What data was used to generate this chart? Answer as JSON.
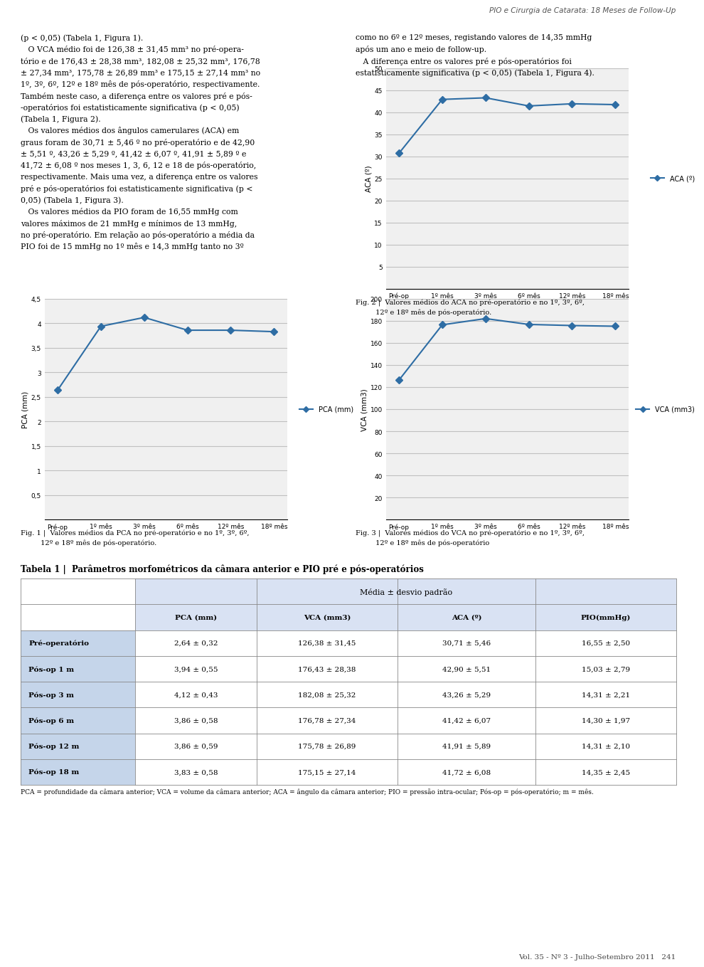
{
  "page_title": "PIO e Cirurgia de Catarata: 18 Meses de Follow-Up",
  "page_number": "Vol. 35 - Nº 3 - Julho-Setembro 2011   241",
  "header_line_color": "#1f4e79",
  "text_left": [
    "(p < 0,05) (Tabela 1, Figura 1).",
    "   O VCA médio foi de 126,38 ± 31,45 mm³ no pré-opera-",
    "tório e de 176,43 ± 28,38 mm³, 182,08 ± 25,32 mm³, 176,78",
    "± 27,34 mm³, 175,78 ± 26,89 mm³ e 175,15 ± 27,14 mm³ no",
    "1º, 3º, 6º, 12º e 18º mês de pós-operatório, respectivamente.",
    "Também neste caso, a diferença entre os valores pré e pós-",
    "-operatórios foi estatisticamente significativa (p < 0,05)",
    "(Tabela 1, Figura 2).",
    "   Os valores médios dos ângulos camerulares (ACA) em",
    "graus foram de 30,71 ± 5,46 º no pré-operatório e de 42,90",
    "± 5,51 º, 43,26 ± 5,29 º, 41,42 ± 6,07 º, 41,91 ± 5,89 º e",
    "41,72 ± 6,08 º nos meses 1, 3, 6, 12 e 18 de pós-operatório,",
    "respectivamente. Mais uma vez, a diferença entre os valores",
    "pré e pós-operatórios foi estatisticamente significativa (p <",
    "0,05) (Tabela 1, Figura 3).",
    "   Os valores médios da PIO foram de 16,55 mmHg com",
    "valores máximos de 21 mmHg e mínimos de 13 mmHg,",
    "no pré-operatório. Em relação ao pós-operatório a média da",
    "PIO foi de 15 mmHg no 1º mês e 14,3 mmHg tanto no 3º"
  ],
  "text_right": [
    "como no 6º e 12º meses, registando valores de 14,35 mmHg",
    "após um ano e meio de follow-up.",
    "   A diferença entre os valores pré e pós-operatórios foi",
    "estatisticamente significativa (p < 0,05) (Tabela 1, Figura 4)."
  ],
  "x_labels": [
    "Pré-op",
    "1º mês",
    "3º mês",
    "6º mês",
    "12º mês",
    "18º mês"
  ],
  "pca_values": [
    2.64,
    3.94,
    4.12,
    3.86,
    3.86,
    3.83
  ],
  "pca_ylabel": "PCA (mm)",
  "pca_ylim": [
    0,
    4.5
  ],
  "pca_yticks": [
    0,
    0.5,
    1.0,
    1.5,
    2.0,
    2.5,
    3.0,
    3.5,
    4.0,
    4.5
  ],
  "pca_ytick_labels": [
    "",
    "0,5",
    "1",
    "1,5",
    "2",
    "2,5",
    "3",
    "3,5",
    "4",
    "4,5"
  ],
  "pca_legend": "PCA (mm)",
  "fig1_caption_line1": "Fig. 1 |  Valores médios da PCA no pré-operatório e no 1º, 3º, 6º,",
  "fig1_caption_line2": "         12º e 18º mês de pós-operatório.",
  "vca_values": [
    126.38,
    176.43,
    182.08,
    176.78,
    175.78,
    175.15
  ],
  "vca_ylabel": "VCA (mm3)",
  "vca_ylim": [
    0,
    200
  ],
  "vca_yticks": [
    0,
    20,
    40,
    60,
    80,
    100,
    120,
    140,
    160,
    180,
    200
  ],
  "vca_ytick_labels": [
    "",
    "20",
    "40",
    "60",
    "80",
    "100",
    "120",
    "140",
    "160",
    "180",
    "200"
  ],
  "vca_legend": "VCA (mm3)",
  "fig3_caption_line1": "Fig. 3 |  Valores médios do VCA no pré-operatório e no 1º, 3º, 6º,",
  "fig3_caption_line2": "         12º e 18º mês de pós-operatório",
  "aca_values": [
    30.71,
    42.9,
    43.26,
    41.42,
    41.91,
    41.72
  ],
  "aca_ylabel": "ACA (º)",
  "aca_ylim": [
    0,
    50
  ],
  "aca_yticks": [
    0,
    5,
    10,
    15,
    20,
    25,
    30,
    35,
    40,
    45,
    50
  ],
  "aca_ytick_labels": [
    "",
    "5",
    "10",
    "15",
    "20",
    "25",
    "30",
    "35",
    "40",
    "45",
    "50"
  ],
  "aca_legend": "ACA (º)",
  "fig2_caption_line1": "Fig. 2 |  Valores médios do ACA no pré-operatório e no 1º, 3º, 6º,",
  "fig2_caption_line2": "         12º e 18º mês de pós-operatório.",
  "line_color": "#2e6da4",
  "marker_style": "D",
  "marker_size": 5,
  "line_width": 1.5,
  "grid_color": "#c0c0c0",
  "plot_bg_color": "#f0f0f0",
  "table_title": "Tabela 1 |  Parâmetros morfométricos da câmara anterior e PIO pré e pós-operatórios",
  "table_subtitle": "Média ± desvio padrão",
  "table_col_headers": [
    "",
    "PCA (mm)",
    "VCA (mm3)",
    "ACA (º)",
    "PIO(mmHg)"
  ],
  "table_rows": [
    [
      "Pré-operatório",
      "2,64 ± 0,32",
      "126,38 ± 31,45",
      "30,71 ± 5,46",
      "16,55 ± 2,50"
    ],
    [
      "Pós-op 1 m",
      "3,94 ± 0,55",
      "176,43 ± 28,38",
      "42,90 ± 5,51",
      "15,03 ± 2,79"
    ],
    [
      "Pós-op 3 m",
      "4,12 ± 0,43",
      "182,08 ± 25,32",
      "43,26 ± 5,29",
      "14,31 ± 2,21"
    ],
    [
      "Pós-op 6 m",
      "3,86 ± 0,58",
      "176,78 ± 27,34",
      "41,42 ± 6,07",
      "14,30 ± 1,97"
    ],
    [
      "Pós-op 12 m",
      "3,86 ± 0,59",
      "175,78 ± 26,89",
      "41,91 ± 5,89",
      "14,31 ± 2,10"
    ],
    [
      "Pós-op 18 m",
      "3,83 ± 0,58",
      "175,15 ± 27,14",
      "41,72 ± 6,08",
      "14,35 ± 2,45"
    ]
  ],
  "table_note": "PCA = profundidade da câmara anterior; VCA = volume da câmara anterior; ACA = ângulo da câmara anterior; PIO = pressão intra-ocular; Pós-op = pós-operatório; m = mês.",
  "table_header_bg": "#d9e2f3",
  "table_bold_col_bg": "#c5d5ea"
}
